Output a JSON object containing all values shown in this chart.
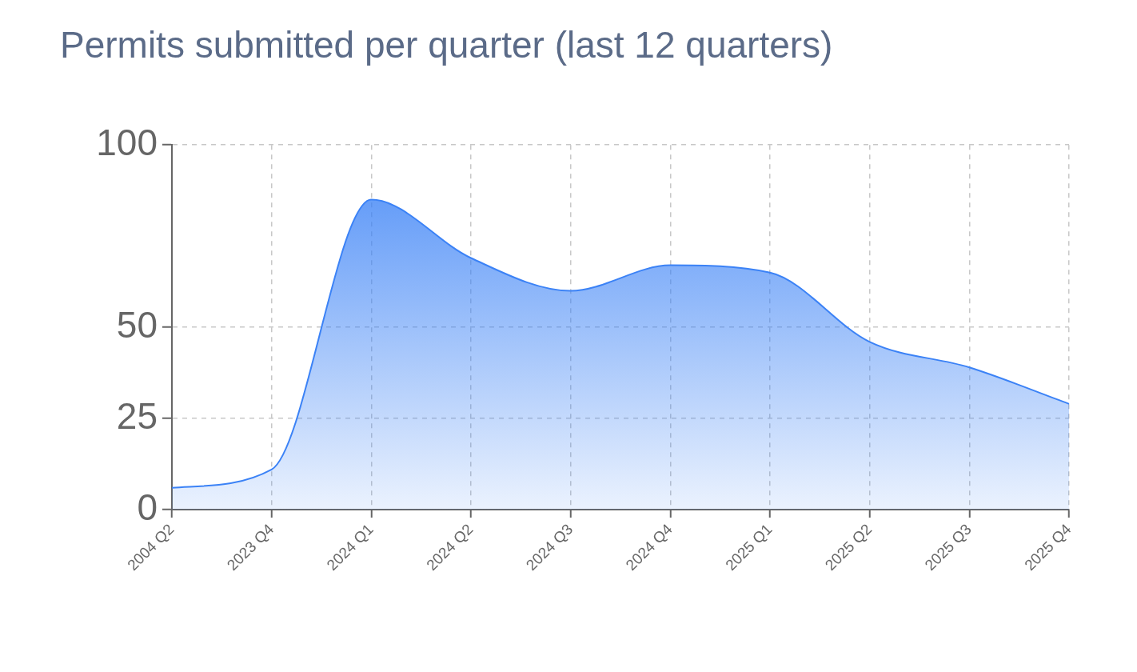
{
  "chart_data": {
    "type": "area",
    "title": "Permits submitted per quarter (last 12 quarters)",
    "categories": [
      "2004 Q2",
      "2023 Q4",
      "2024 Q1",
      "2024 Q2",
      "2024 Q3",
      "2024 Q4",
      "2025 Q1",
      "2025 Q2",
      "2025 Q3",
      "2025 Q4"
    ],
    "values": [
      6,
      11,
      85,
      69,
      60,
      67,
      65,
      46,
      39,
      29
    ],
    "color": "#3b82f6",
    "ylim": [
      0,
      100
    ],
    "yticks": [
      0,
      25,
      50,
      100
    ],
    "grid": true
  }
}
